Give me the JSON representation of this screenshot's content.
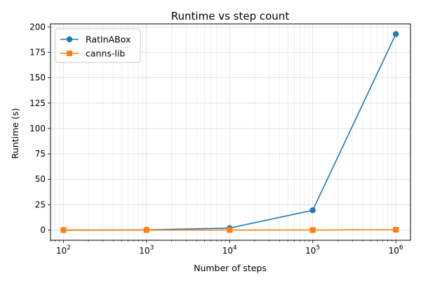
{
  "chart_data": {
    "type": "line",
    "title": "Runtime vs step count",
    "xlabel": "Number of steps",
    "ylabel": "Runtime (s)",
    "xscale": "log",
    "xlim": [
      70,
      1500000
    ],
    "ylim": [
      -10,
      203
    ],
    "x": [
      100,
      1000,
      10000,
      100000,
      1000000
    ],
    "x_ticks": [
      {
        "value": 100,
        "base": "10",
        "exp": "2"
      },
      {
        "value": 1000,
        "base": "10",
        "exp": "3"
      },
      {
        "value": 10000,
        "base": "10",
        "exp": "4"
      },
      {
        "value": 100000,
        "base": "10",
        "exp": "5"
      },
      {
        "value": 1000000,
        "base": "10",
        "exp": "6"
      }
    ],
    "y_ticks": [
      0,
      25,
      50,
      75,
      100,
      125,
      150,
      175,
      200
    ],
    "grid": true,
    "legend_position": "top-left",
    "series": [
      {
        "name": "RatInABox",
        "values": [
          0.02,
          0.2,
          2.0,
          19.5,
          193.0
        ],
        "color": "#1f77b4",
        "marker": "circle"
      },
      {
        "name": "canns-lib",
        "values": [
          0.01,
          0.02,
          0.05,
          0.05,
          0.35
        ],
        "color": "#ff7f0e",
        "marker": "square"
      }
    ]
  }
}
